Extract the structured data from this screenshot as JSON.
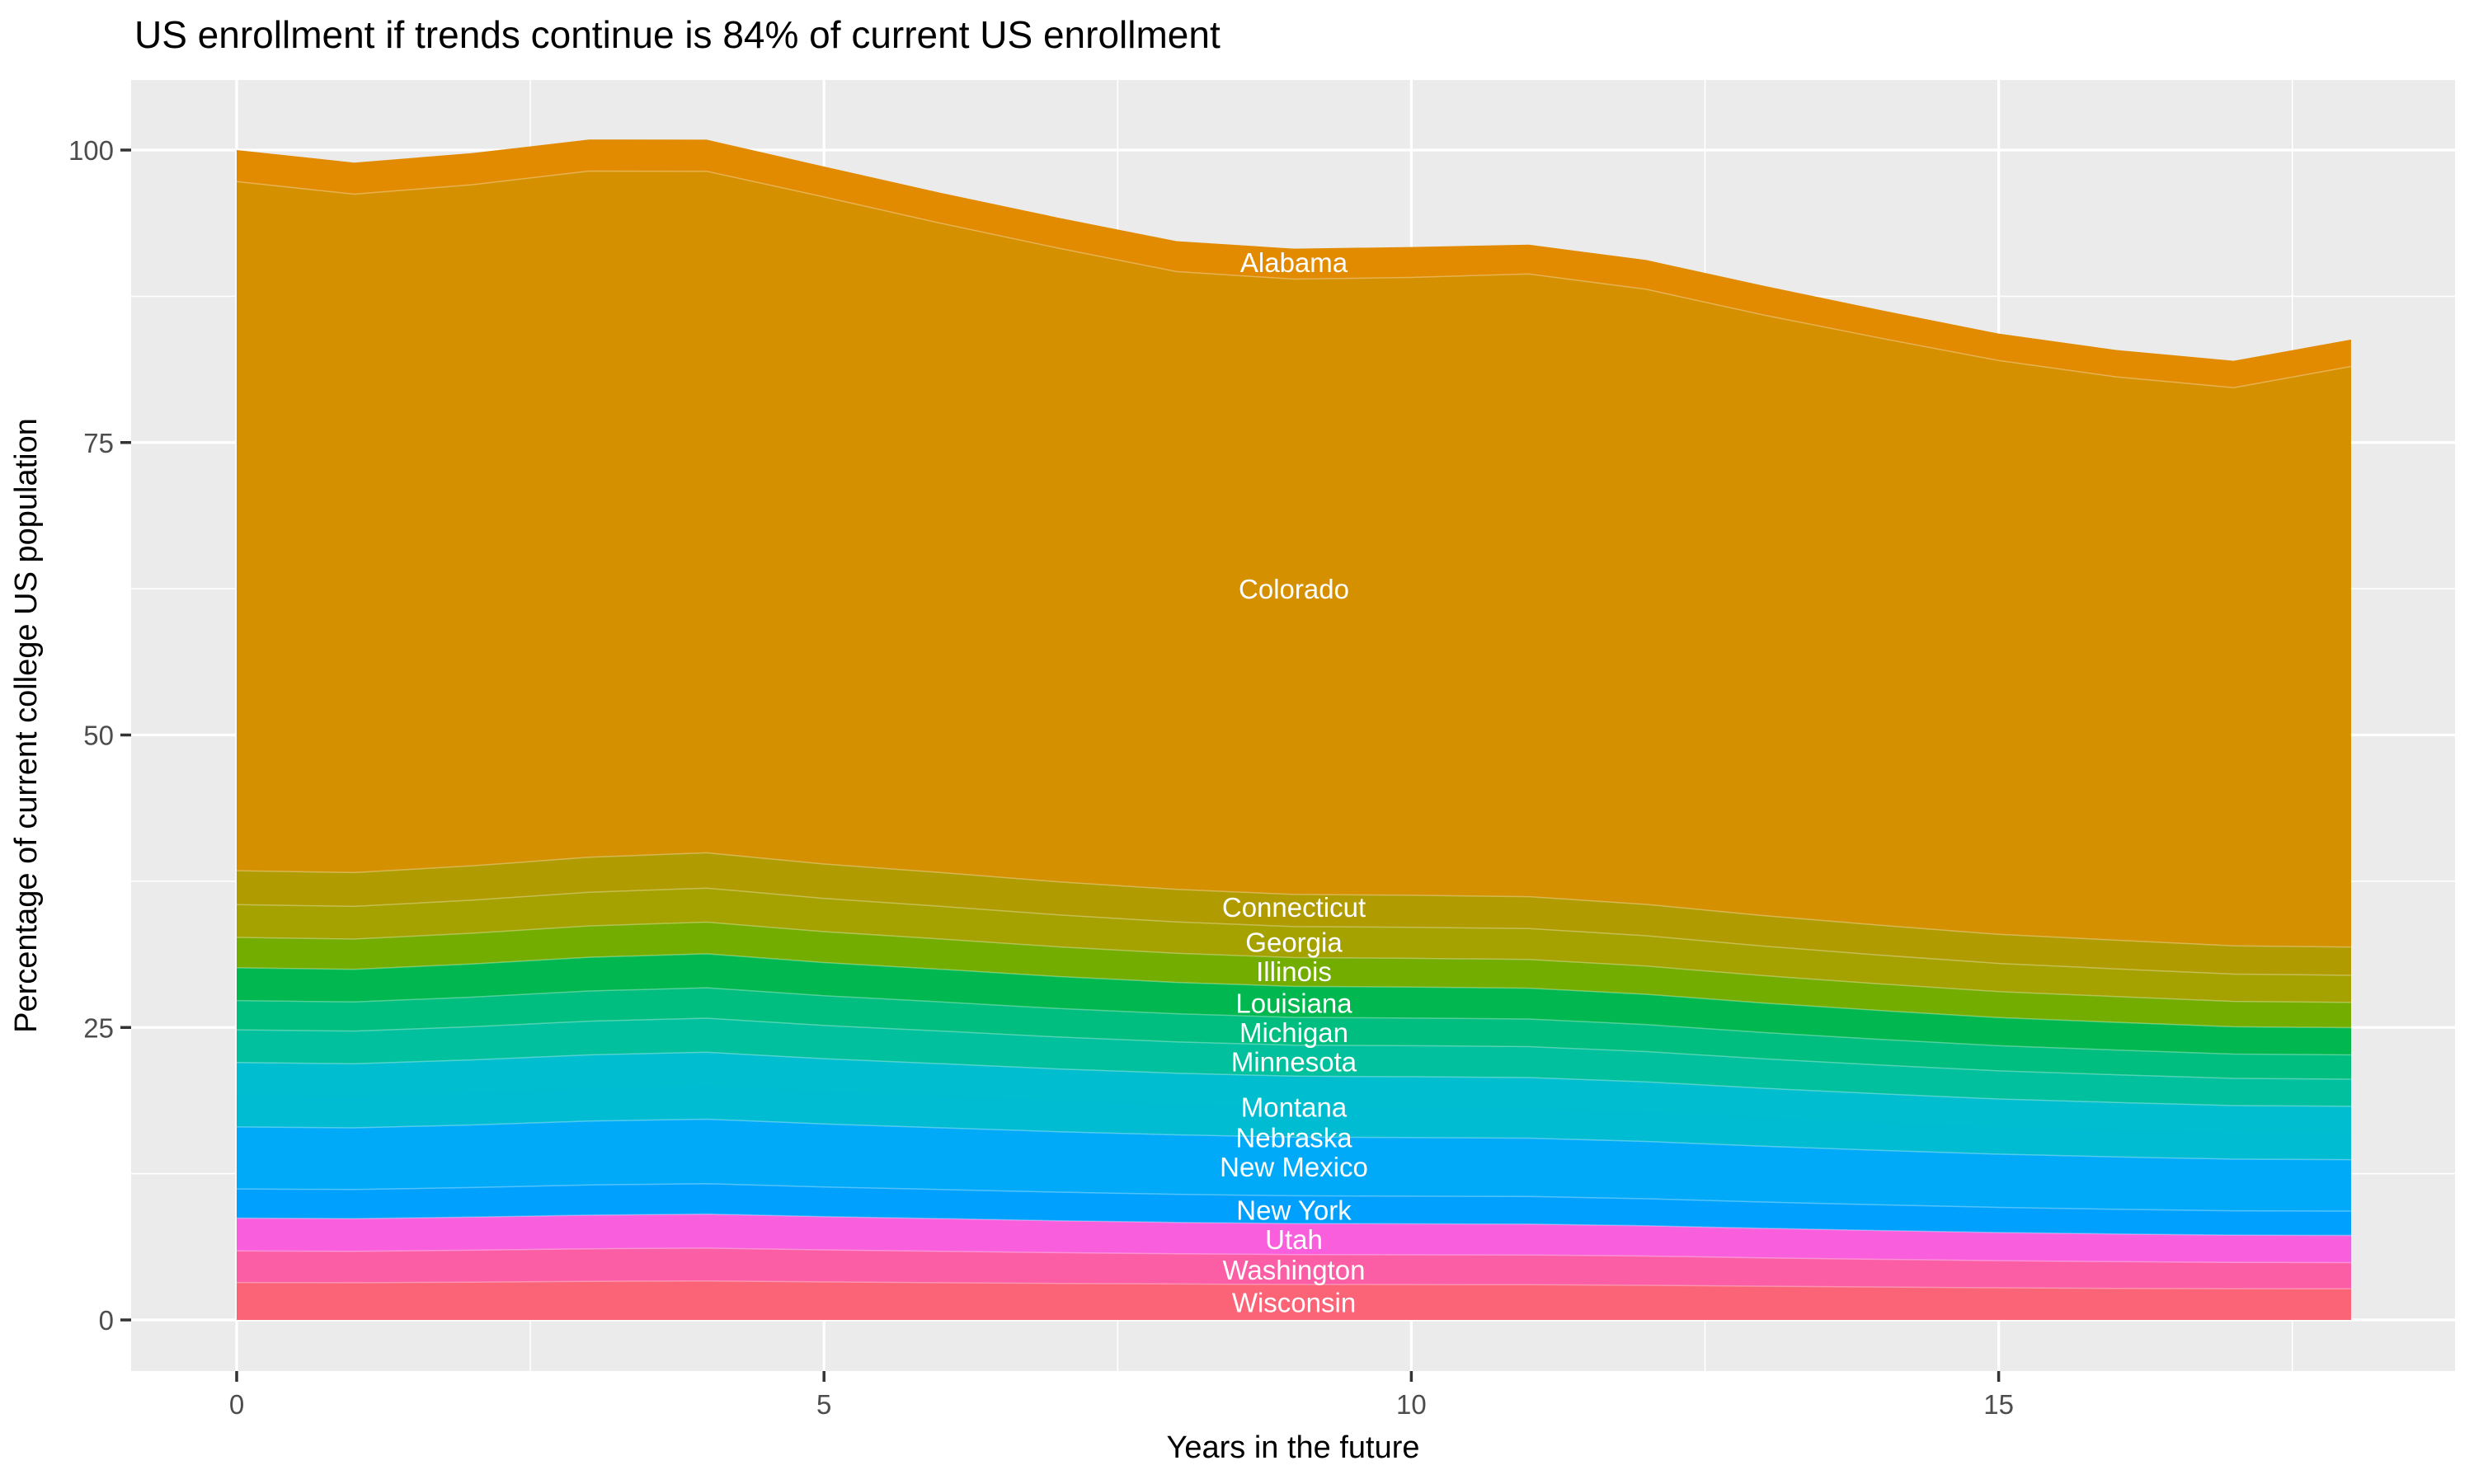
{
  "title": "US enrollment if trends continue is 84% of current US enrollment",
  "axes": {
    "x": {
      "title": "Years in the future",
      "ticks": [
        0,
        5,
        10,
        15
      ],
      "minor_ticks": [
        2.5,
        7.5,
        12.5,
        17.5
      ],
      "range": [
        0,
        18
      ]
    },
    "y": {
      "title": "Percentage of current college US population",
      "ticks": [
        0,
        25,
        50,
        75,
        100
      ],
      "minor_ticks": [
        12.5,
        37.5,
        62.5,
        87.5
      ],
      "range": [
        0,
        101
      ]
    }
  },
  "style": {
    "panel_background": "#EBEBEB",
    "gridline_color": "#FFFFFF",
    "tick_mark_color": "#333333",
    "tick_label_color": "#4D4D4D",
    "band_separator": "rgba(255,255,255,0.32)"
  },
  "chart_data": {
    "type": "area",
    "stacked": true,
    "title": "US enrollment if trends continue is 84% of current US enrollment",
    "xlabel": "Years in the future",
    "ylabel": "Percentage of current college US population",
    "xlim": [
      0,
      18
    ],
    "ylim": [
      0,
      101
    ],
    "grid": true,
    "legend_position": "none",
    "label_x": 9,
    "x": [
      0,
      1,
      2,
      3,
      4,
      5,
      6,
      7,
      8,
      9,
      10,
      11,
      12,
      13,
      14,
      15,
      16,
      17,
      18
    ],
    "total_percent": [
      100,
      98.9,
      99.7,
      100.9,
      100.9,
      98.6,
      96.3,
      94.2,
      92.2,
      91.6,
      91.7,
      91.9,
      90.6,
      88.4,
      86.3,
      84.3,
      82.9,
      82.0,
      83.8
    ],
    "final_total_percent": 84,
    "series": [
      {
        "name": "Alabama",
        "color": "#E28B00",
        "label_y": 90.4,
        "top_stroke": false,
        "values": [
          2.7,
          2.7,
          2.7,
          2.7,
          2.7,
          2.6,
          2.6,
          2.6,
          2.6,
          2.6,
          2.6,
          2.5,
          2.5,
          2.5,
          2.4,
          2.3,
          2.3,
          2.3,
          2.3
        ]
      },
      {
        "name": "Colorado",
        "color": "#D59000",
        "label_y": 62.5,
        "top_stroke": true,
        "values": [
          58.9,
          57.99,
          58.22,
          58.65,
          58.26,
          57.02,
          55.49,
          54.16,
          52.81,
          52.6,
          52.81,
          53.23,
          52.58,
          51.34,
          50.18,
          49.05,
          48.15,
          47.71,
          49.63
        ]
      },
      {
        "name": "Connecticut",
        "color": "#B09C00",
        "label_y": 35.3,
        "top_stroke": true,
        "values": [
          2.9,
          2.89,
          2.93,
          2.99,
          3.02,
          2.94,
          2.89,
          2.83,
          2.78,
          2.75,
          2.74,
          2.73,
          2.68,
          2.61,
          2.55,
          2.49,
          2.45,
          2.42,
          2.41
        ]
      },
      {
        "name": "Georgia",
        "color": "#A5A200",
        "label_y": 32.3,
        "top_stroke": true,
        "values": [
          2.8,
          2.79,
          2.83,
          2.88,
          2.91,
          2.84,
          2.79,
          2.73,
          2.68,
          2.65,
          2.65,
          2.64,
          2.59,
          2.52,
          2.46,
          2.4,
          2.37,
          2.33,
          2.32
        ]
      },
      {
        "name": "Illinois",
        "color": "#73AD00",
        "label_y": 29.8,
        "top_stroke": true,
        "values": [
          2.6,
          2.59,
          2.63,
          2.68,
          2.7,
          2.64,
          2.59,
          2.54,
          2.49,
          2.46,
          2.46,
          2.45,
          2.41,
          2.34,
          2.28,
          2.23,
          2.2,
          2.17,
          2.16
        ]
      },
      {
        "name": "Louisiana",
        "color": "#00B84F",
        "label_y": 27.1,
        "top_stroke": true,
        "values": [
          2.8,
          2.79,
          2.83,
          2.88,
          2.91,
          2.84,
          2.79,
          2.73,
          2.68,
          2.65,
          2.65,
          2.64,
          2.59,
          2.52,
          2.46,
          2.4,
          2.37,
          2.33,
          2.32
        ]
      },
      {
        "name": "Michigan",
        "color": "#00BD80",
        "label_y": 24.6,
        "top_stroke": true,
        "values": [
          2.5,
          2.49,
          2.53,
          2.58,
          2.6,
          2.54,
          2.49,
          2.44,
          2.4,
          2.37,
          2.36,
          2.36,
          2.31,
          2.25,
          2.2,
          2.15,
          2.11,
          2.08,
          2.08
        ]
      },
      {
        "name": "Minnesota",
        "color": "#00C09E",
        "label_y": 22.1,
        "top_stroke": true,
        "values": [
          2.8,
          2.79,
          2.83,
          2.88,
          2.91,
          2.84,
          2.79,
          2.73,
          2.68,
          2.65,
          2.65,
          2.64,
          2.59,
          2.52,
          2.46,
          2.4,
          2.37,
          2.33,
          2.32
        ]
      },
      {
        "name": "Montana",
        "color": "#00BDCF",
        "label_y": 18.2,
        "top_stroke": true,
        "values": [
          2.8,
          2.79,
          2.83,
          2.88,
          2.91,
          2.84,
          2.79,
          2.73,
          2.68,
          2.65,
          2.65,
          2.64,
          2.59,
          2.52,
          2.46,
          2.4,
          2.37,
          2.33,
          2.32
        ]
      },
      {
        "name": "Nebraska",
        "color": "#00BCD2",
        "label_y": 15.6,
        "top_stroke": false,
        "values": [
          2.7,
          2.69,
          2.73,
          2.78,
          2.81,
          2.74,
          2.69,
          2.63,
          2.59,
          2.56,
          2.55,
          2.54,
          2.5,
          2.43,
          2.37,
          2.32,
          2.28,
          2.25,
          2.24
        ]
      },
      {
        "name": "New Mexico",
        "color": "#00AAF8",
        "label_y": 13.1,
        "top_stroke": true,
        "values": [
          5.3,
          5.27,
          5.35,
          5.46,
          5.51,
          5.38,
          5.27,
          5.17,
          5.08,
          5.02,
          5.01,
          4.99,
          4.9,
          4.77,
          4.65,
          4.55,
          4.48,
          4.41,
          4.4
        ]
      },
      {
        "name": "New York",
        "color": "#00A1FE",
        "label_y": 9.4,
        "top_stroke": true,
        "values": [
          2.5,
          2.49,
          2.53,
          2.58,
          2.6,
          2.54,
          2.49,
          2.44,
          2.4,
          2.37,
          2.36,
          2.36,
          2.31,
          2.25,
          2.2,
          2.15,
          2.11,
          2.08,
          2.08
        ]
      },
      {
        "name": "Utah",
        "color": "#F95EDD",
        "label_y": 6.9,
        "top_stroke": true,
        "values": [
          2.8,
          2.79,
          2.83,
          2.88,
          2.91,
          2.84,
          2.79,
          2.73,
          2.68,
          2.65,
          2.65,
          2.64,
          2.59,
          2.52,
          2.46,
          2.4,
          2.37,
          2.33,
          2.32
        ]
      },
      {
        "name": "Washington",
        "color": "#FC5EA5",
        "label_y": 4.3,
        "top_stroke": true,
        "values": [
          2.7,
          2.69,
          2.73,
          2.78,
          2.81,
          2.74,
          2.69,
          2.63,
          2.59,
          2.56,
          2.55,
          2.54,
          2.5,
          2.43,
          2.37,
          2.32,
          2.28,
          2.25,
          2.24
        ]
      },
      {
        "name": "Wisconsin",
        "color": "#FB6376",
        "label_y": 1.5,
        "top_stroke": true,
        "values": [
          3.2,
          3.18,
          3.23,
          3.3,
          3.33,
          3.25,
          3.18,
          3.12,
          3.07,
          3.03,
          3.02,
          3.01,
          2.96,
          2.88,
          2.81,
          2.75,
          2.7,
          2.67,
          2.66
        ]
      }
    ]
  }
}
